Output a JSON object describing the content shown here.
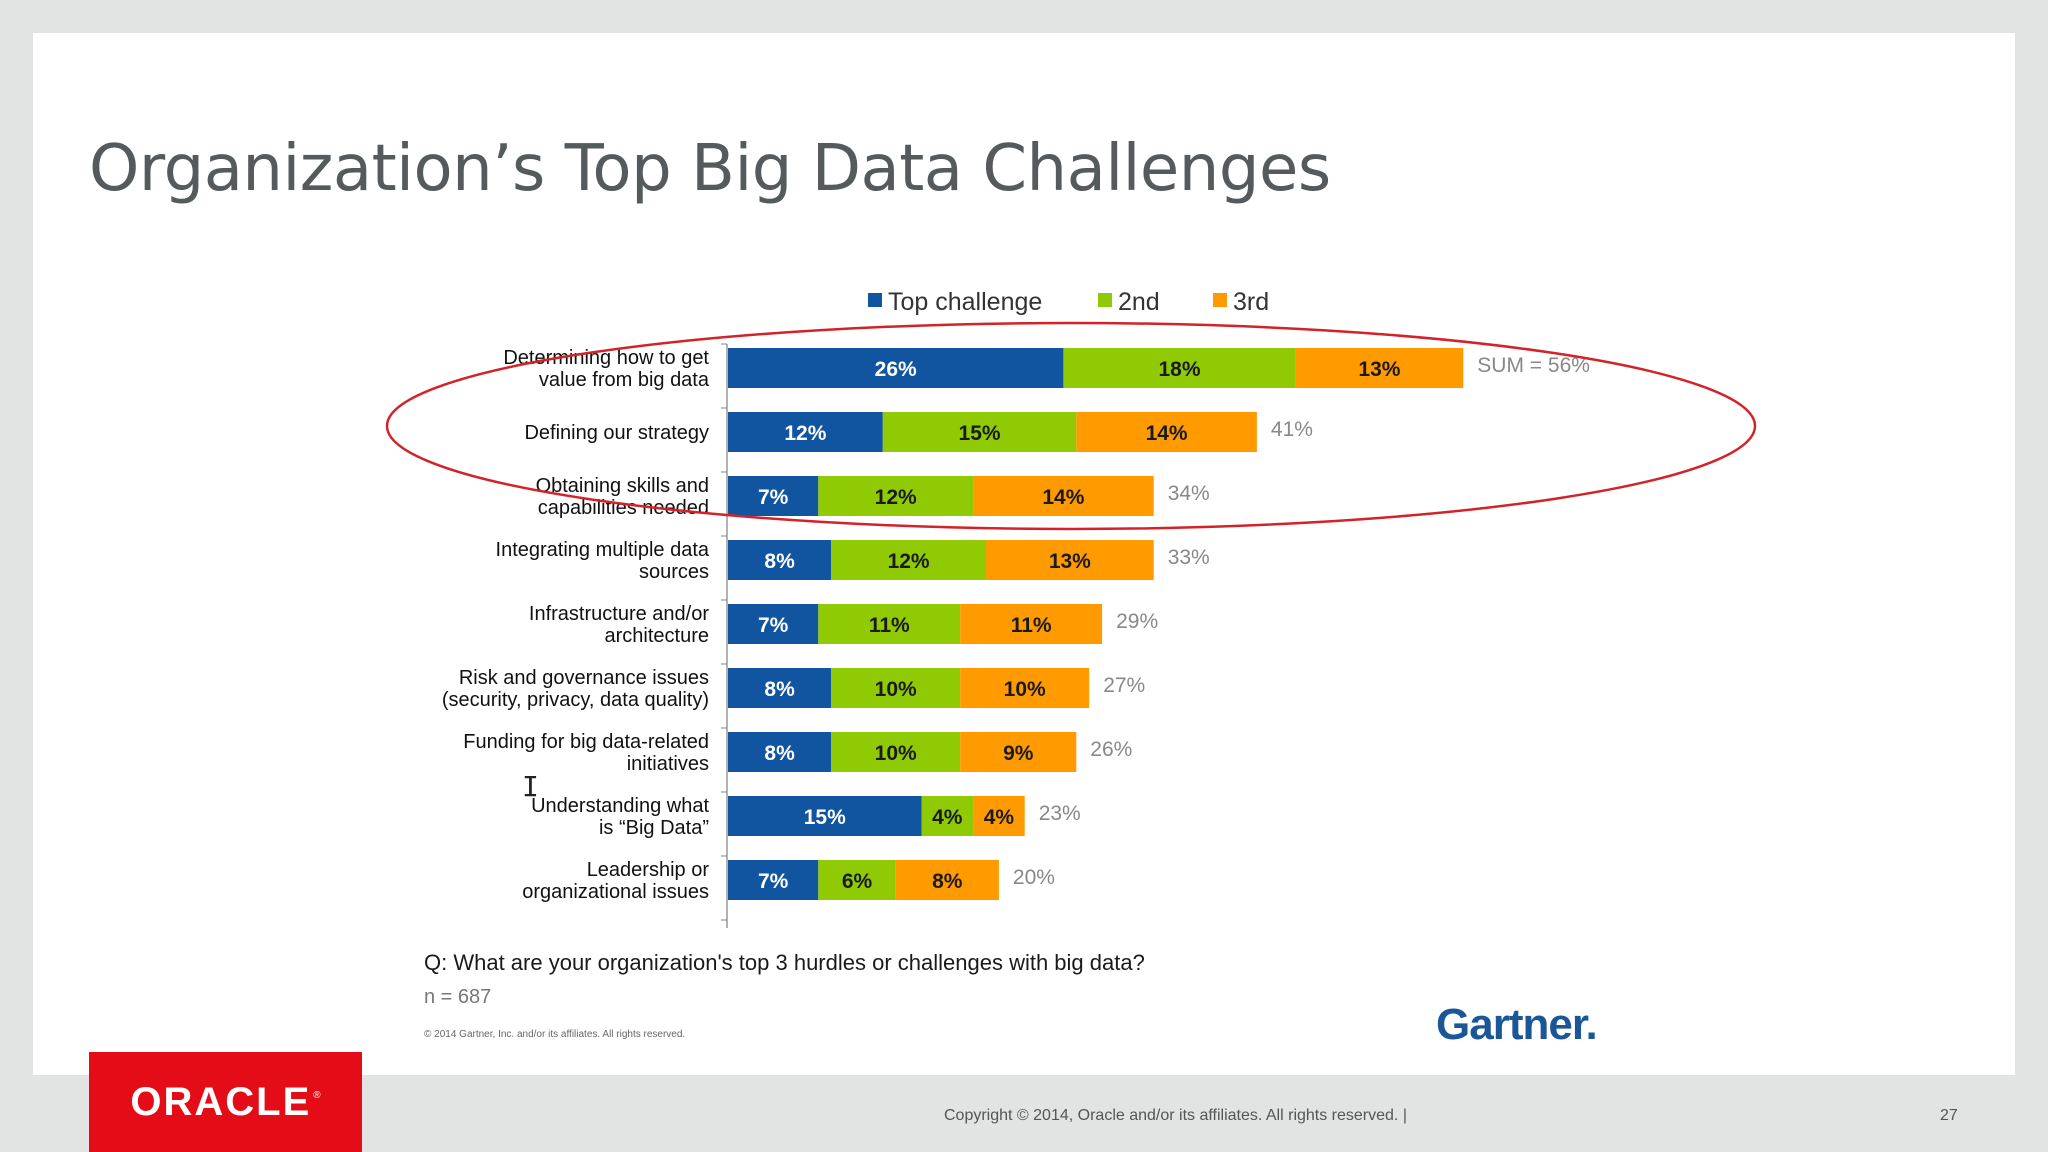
{
  "slide": {
    "title": "Organization’s Top Big Data Challenges",
    "footer_copyright": "Copyright © 2014, Oracle and/or its affiliates. All rights reserved.  |",
    "page_number": "27",
    "brand_logo": "ORACLE",
    "brand_logo_mark": "®"
  },
  "chart_meta": {
    "question": "Q: What are your organization's top 3 hurdles or challenges with big data?",
    "sample": "n = 687",
    "copyright": "© 2014 Gartner, Inc. and/or its affiliates. All rights reserved.",
    "source_logo": "Gartner."
  },
  "colors": {
    "top": "#1155a0",
    "second": "#8fca05",
    "third": "#ff9a00",
    "total_label": "#888888",
    "highlight": "#d2232a"
  },
  "chart_data": {
    "type": "bar",
    "orientation": "horizontal",
    "stacked": true,
    "legend_position": "top",
    "categories": [
      [
        "Determining how to get",
        "value from big data"
      ],
      [
        "Defining our strategy"
      ],
      [
        "Obtaining skills and",
        "capabilities needed"
      ],
      [
        "Integrating multiple data",
        "sources"
      ],
      [
        "Infrastructure and/or",
        "architecture"
      ],
      [
        "Risk and governance issues",
        "(security, privacy, data quality)"
      ],
      [
        "Funding for big data-related",
        "initiatives"
      ],
      [
        "Understanding what",
        "is “Big Data”"
      ],
      [
        "Leadership or",
        "organizational issues"
      ]
    ],
    "series": [
      {
        "name": "Top challenge",
        "values": [
          26,
          12,
          7,
          8,
          7,
          8,
          8,
          15,
          7
        ]
      },
      {
        "name": "2nd",
        "values": [
          18,
          15,
          12,
          12,
          11,
          10,
          10,
          4,
          6
        ]
      },
      {
        "name": "3rd",
        "values": [
          13,
          14,
          14,
          13,
          11,
          10,
          9,
          4,
          8
        ]
      }
    ],
    "totals": [
      "SUM = 56%",
      "41%",
      "34%",
      "33%",
      "29%",
      "27%",
      "26%",
      "23%",
      "20%"
    ],
    "value_suffix": "%",
    "highlighted_rows": [
      0,
      1,
      2
    ]
  }
}
